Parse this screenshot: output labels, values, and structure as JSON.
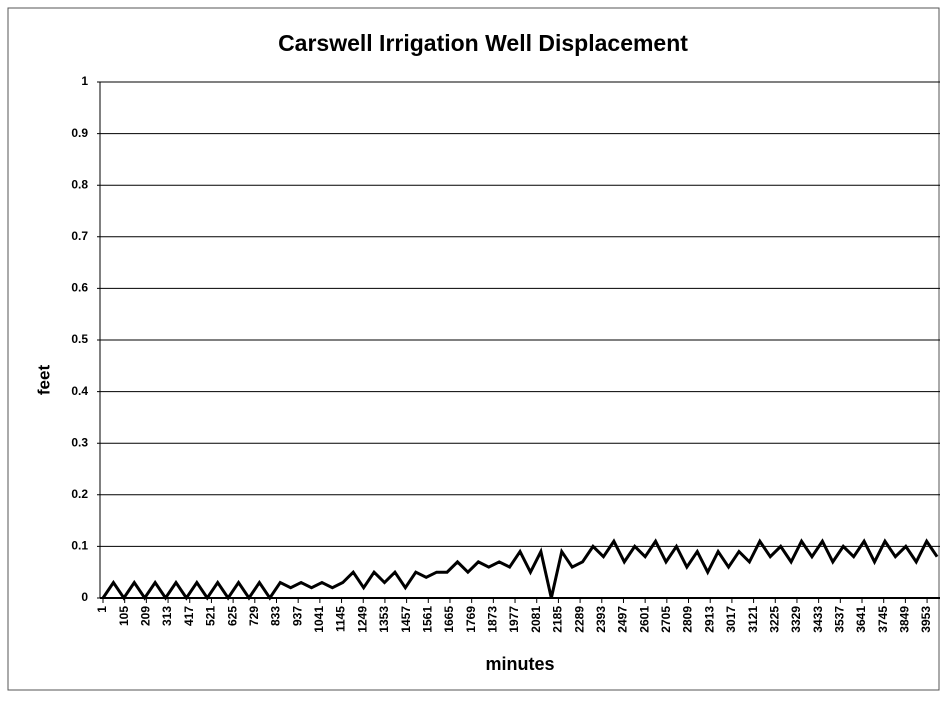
{
  "chart_data": {
    "type": "line",
    "title": "Carswell Irrigation Well Displacement",
    "x_label": "minutes",
    "y_label": "feet",
    "x": [
      1,
      51,
      101,
      151,
      201,
      251,
      301,
      351,
      401,
      451,
      501,
      551,
      601,
      651,
      701,
      751,
      801,
      851,
      901,
      951,
      1001,
      1051,
      1101,
      1151,
      1201,
      1251,
      1301,
      1351,
      1401,
      1451,
      1501,
      1551,
      1601,
      1651,
      1701,
      1751,
      1801,
      1851,
      1901,
      1951,
      2001,
      2051,
      2101,
      2151,
      2201,
      2251,
      2301,
      2351,
      2401,
      2451,
      2501,
      2551,
      2601,
      2651,
      2701,
      2751,
      2801,
      2851,
      2901,
      2951,
      3001,
      3051,
      3101,
      3151,
      3201,
      3251,
      3301,
      3351,
      3401,
      3451,
      3501,
      3551,
      3601,
      3651,
      3701,
      3751,
      3801,
      3851,
      3901,
      3951,
      4001
    ],
    "series": [
      {
        "name": "feet",
        "color": "#000000",
        "values": [
          0,
          0.03,
          0,
          0.03,
          0,
          0.03,
          0,
          0.03,
          0,
          0.03,
          0,
          0.03,
          0,
          0.03,
          0,
          0.03,
          0,
          0.03,
          0.02,
          0.03,
          0.02,
          0.03,
          0.02,
          0.03,
          0.05,
          0.02,
          0.05,
          0.03,
          0.05,
          0.02,
          0.05,
          0.04,
          0.05,
          0.05,
          0.07,
          0.05,
          0.07,
          0.06,
          0.07,
          0.06,
          0.09,
          0.05,
          0.09,
          0,
          0.09,
          0.06,
          0.07,
          0.1,
          0.08,
          0.11,
          0.07,
          0.1,
          0.08,
          0.11,
          0.07,
          0.1,
          0.06,
          0.09,
          0.05,
          0.09,
          0.06,
          0.09,
          0.07,
          0.11,
          0.08,
          0.1,
          0.07,
          0.11,
          0.08,
          0.11,
          0.07,
          0.1,
          0.08,
          0.11,
          0.07,
          0.11,
          0.08,
          0.1,
          0.07,
          0.11,
          0.08
        ]
      }
    ],
    "xlim": [
      1,
      4015
    ],
    "xticks": [
      1,
      105,
      209,
      313,
      417,
      521,
      625,
      729,
      833,
      937,
      1041,
      1145,
      1249,
      1353,
      1457,
      1561,
      1665,
      1769,
      1873,
      1977,
      2081,
      2185,
      2289,
      2393,
      2497,
      2601,
      2705,
      2809,
      2913,
      3017,
      3121,
      3225,
      3329,
      3433,
      3537,
      3641,
      3745,
      3849,
      3953
    ],
    "ylim": [
      0,
      1
    ],
    "yticks": [
      0,
      0.1,
      0.2,
      0.3,
      0.4,
      0.5,
      0.6,
      0.7,
      0.8,
      0.9,
      1
    ],
    "grid": true
  }
}
